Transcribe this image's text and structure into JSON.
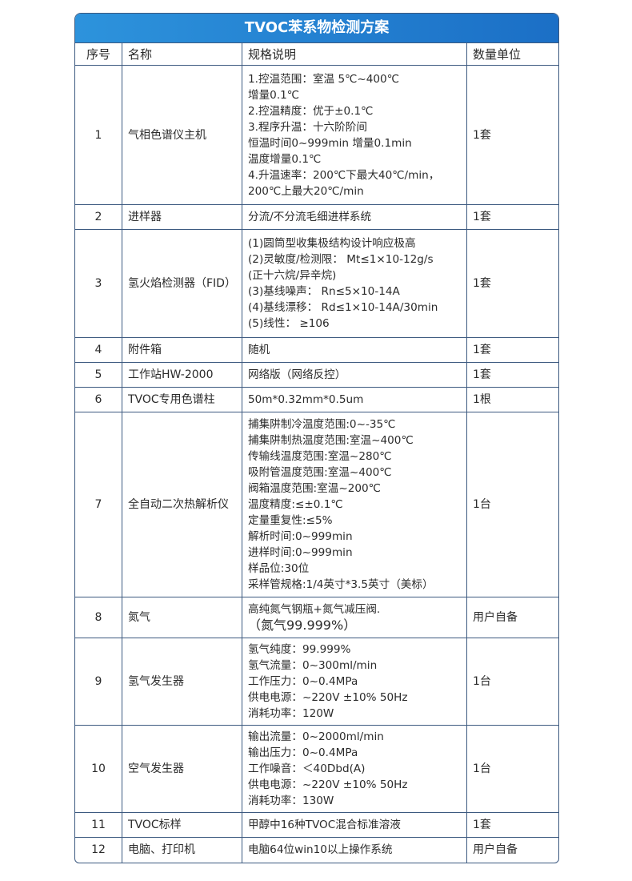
{
  "title": "TVOC苯系物检测方案",
  "headers": [
    "序号",
    "名称",
    "规格说明",
    "数量单位"
  ],
  "rows": [
    {
      "no": "1",
      "name": "气相色谱仪主机",
      "spec": [
        "1.控温范围：室温 5℃~400℃",
        "增量0.1℃",
        "2.控温精度：优于±0.1℃",
        "3.程序升温：十六阶阶间",
        "恒温时间0~999min 增量0.1min",
        "温度增量0.1℃",
        "4.升温速率：200℃下最大40℃/min，",
        "200℃上最大20℃/min"
      ],
      "qty": "1套"
    },
    {
      "no": "2",
      "name": "进样器",
      "spec": [
        "分流/不分流毛细进样系统"
      ],
      "qty": "1套"
    },
    {
      "no": "3",
      "name": "氢火焰检测器（FID）",
      "spec": [
        "(1)圆筒型收集极结构设计响应极高",
        "(2)灵敏度/检测限： Mt≤1×10-12g/s",
        "(正十六烷/异辛烷)",
        "(3)基线噪声： Rn≤5×10-14A",
        "(4)基线漂移： Rd≤1×10-14A/30min",
        "(5)线性： ≥106"
      ],
      "qty": "1套"
    },
    {
      "no": "4",
      "name": "附件箱",
      "spec": [
        "随机"
      ],
      "qty": "1套"
    },
    {
      "no": "5",
      "name": "工作站HW-2000",
      "spec": [
        "网络版（网络反控）"
      ],
      "qty": "1套"
    },
    {
      "no": "6",
      "name": "TVOC专用色谱柱",
      "spec": [
        "50m*0.32mm*0.5um"
      ],
      "qty": "1根"
    },
    {
      "no": "7",
      "name": "全自动二次热解析仪",
      "spec": [
        "捕集阱制冷温度范围:0~-35℃",
        "捕集阱制热温度范围:室温~400℃",
        "传输线温度范围:室温~280℃",
        "吸附管温度范围:室温~400℃",
        "阀箱温度范围:室温~200℃",
        "温度精度:≤±0.1℃",
        "定量重复性:≤5%",
        "解析时间:0~999min",
        "进样时间:0~999min",
        "样品位:30位",
        "采样管规格:1/4英寸*3.5英寸（美标）"
      ],
      "qty": "1台"
    },
    {
      "no": "8",
      "name": "氮气",
      "spec": [
        "高纯氮气钢瓶+氮气减压阀.",
        "（氮气99.999%）"
      ],
      "qty": "用户自备"
    },
    {
      "no": "9",
      "name": "氢气发生器",
      "spec": [
        "氢气纯度：99.999%",
        "氢气流量：0~300ml/min",
        "工作压力：0~0.4MPa",
        "供电电源：~220V ±10% 50Hz",
        "消耗功率：120W"
      ],
      "qty": "1台"
    },
    {
      "no": "10",
      "name": "空气发生器",
      "spec": [
        "输出流量：0~2000ml/min",
        "输出压力：0~0.4MPa",
        "工作噪音：＜40Dbd(A)",
        "供电电源：~220V ±10% 50Hz",
        "消耗功率：130W"
      ],
      "qty": "1台"
    },
    {
      "no": "11",
      "name": "TVOC标样",
      "spec": [
        "甲醇中16种TVOC混合标准溶液"
      ],
      "qty": "1套"
    },
    {
      "no": "12",
      "name": "电脑、打印机",
      "spec": [
        "电脑64位win10以上操作系统"
      ],
      "qty": "用户自备"
    }
  ]
}
